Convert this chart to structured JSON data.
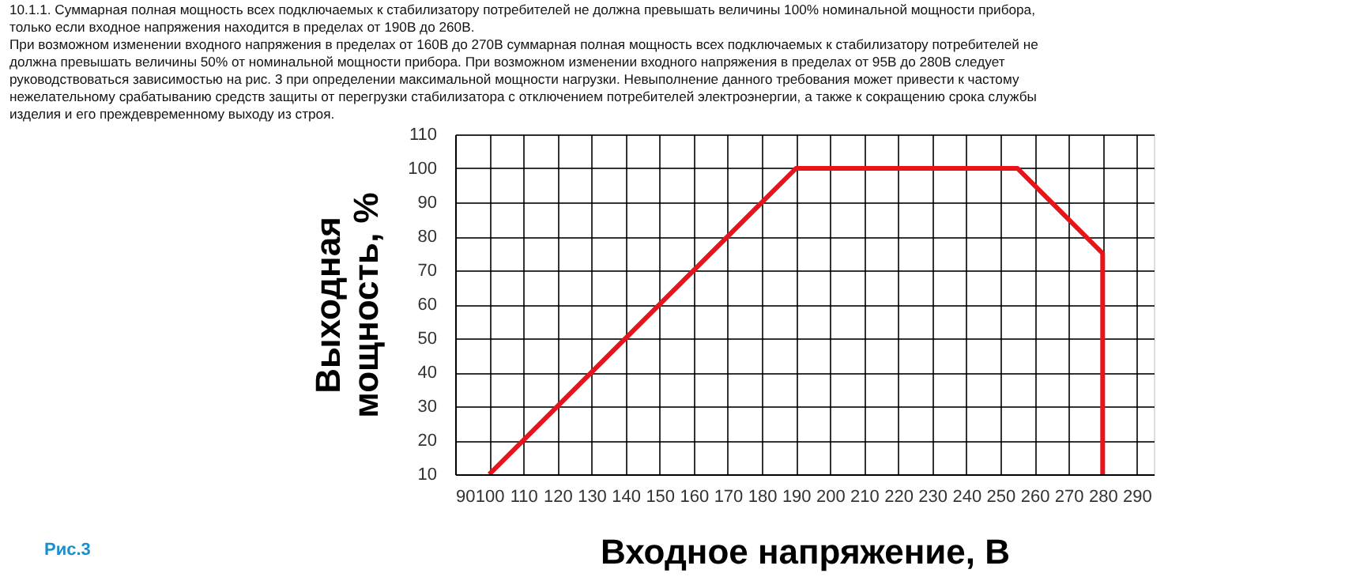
{
  "chart_data": {
    "type": "line",
    "xlabel": "Входное напряжение, В",
    "ylabel": "Выходная мощность, %",
    "x": [
      100,
      190,
      255,
      280,
      280
    ],
    "series": [
      {
        "color": "#e8141c",
        "values": [
          10,
          100,
          100,
          75,
          10
        ]
      }
    ],
    "xlim": [
      90,
      295
    ],
    "xticks": [
      90,
      100,
      110,
      120,
      130,
      140,
      150,
      160,
      170,
      180,
      190,
      200,
      210,
      220,
      230,
      240,
      250,
      260,
      270,
      280,
      290
    ],
    "ylim": [
      10,
      110
    ],
    "yticks": [
      10,
      20,
      30,
      40,
      50,
      60,
      70,
      80,
      90,
      100,
      110
    ],
    "grid": true,
    "marker": "none",
    "line_style": "solid",
    "annotations": [
      "10.1.1. Суммарная полная мощность всех подключаемых к стабилизатору потребителей не должна превышать величины 100% номинальной мощности прибора, только если входное напряжения находится в пределах от 190В до 260В.",
      "При возможном изменении входного напряжения в пределах от 160В до 270В суммарная полная мощность всех подключаемых к стабилизатору потребителей не должна превышать величины 50% от номинальной мощности прибора. При возможном изменении входного напряжения в пределах от 95В до 280В следует руководствоваться зависимостью на рис. 3 при определении максимальной мощности нагрузки. Невыполнение данного требования может привести к частому нежелательному срабатыванию средств защиты от перегрузки стабилизатора с отключением потребителей электроэнергии, а также к сокращению срока службы изделия и его преждевременному выходу из строя.",
      "Рис.3"
    ]
  }
}
